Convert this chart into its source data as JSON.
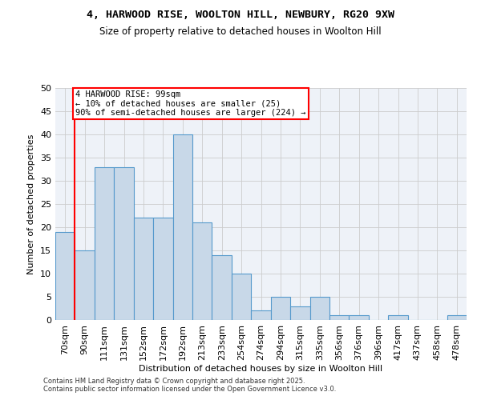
{
  "title_line1": "4, HARWOOD RISE, WOOLTON HILL, NEWBURY, RG20 9XW",
  "title_line2": "Size of property relative to detached houses in Woolton Hill",
  "xlabel": "Distribution of detached houses by size in Woolton Hill",
  "ylabel": "Number of detached properties",
  "categories": [
    "70sqm",
    "90sqm",
    "111sqm",
    "131sqm",
    "152sqm",
    "172sqm",
    "192sqm",
    "213sqm",
    "233sqm",
    "254sqm",
    "274sqm",
    "294sqm",
    "315sqm",
    "335sqm",
    "356sqm",
    "376sqm",
    "396sqm",
    "417sqm",
    "437sqm",
    "458sqm",
    "478sqm"
  ],
  "values": [
    19,
    15,
    33,
    33,
    22,
    22,
    40,
    21,
    14,
    10,
    2,
    5,
    3,
    5,
    1,
    1,
    0,
    1,
    0,
    0,
    1
  ],
  "bar_color": "#c8d8e8",
  "bar_edge_color": "#5599cc",
  "red_line_index": 1,
  "annotation_line1": "4 HARWOOD RISE: 99sqm",
  "annotation_line2": "← 10% of detached houses are smaller (25)",
  "annotation_line3": "90% of semi-detached houses are larger (224) →",
  "ylim": [
    0,
    50
  ],
  "yticks": [
    0,
    5,
    10,
    15,
    20,
    25,
    30,
    35,
    40,
    45,
    50
  ],
  "grid_color": "#cccccc",
  "background_color": "#eef2f8",
  "footer_line1": "Contains HM Land Registry data © Crown copyright and database right 2025.",
  "footer_line2": "Contains public sector information licensed under the Open Government Licence v3.0."
}
